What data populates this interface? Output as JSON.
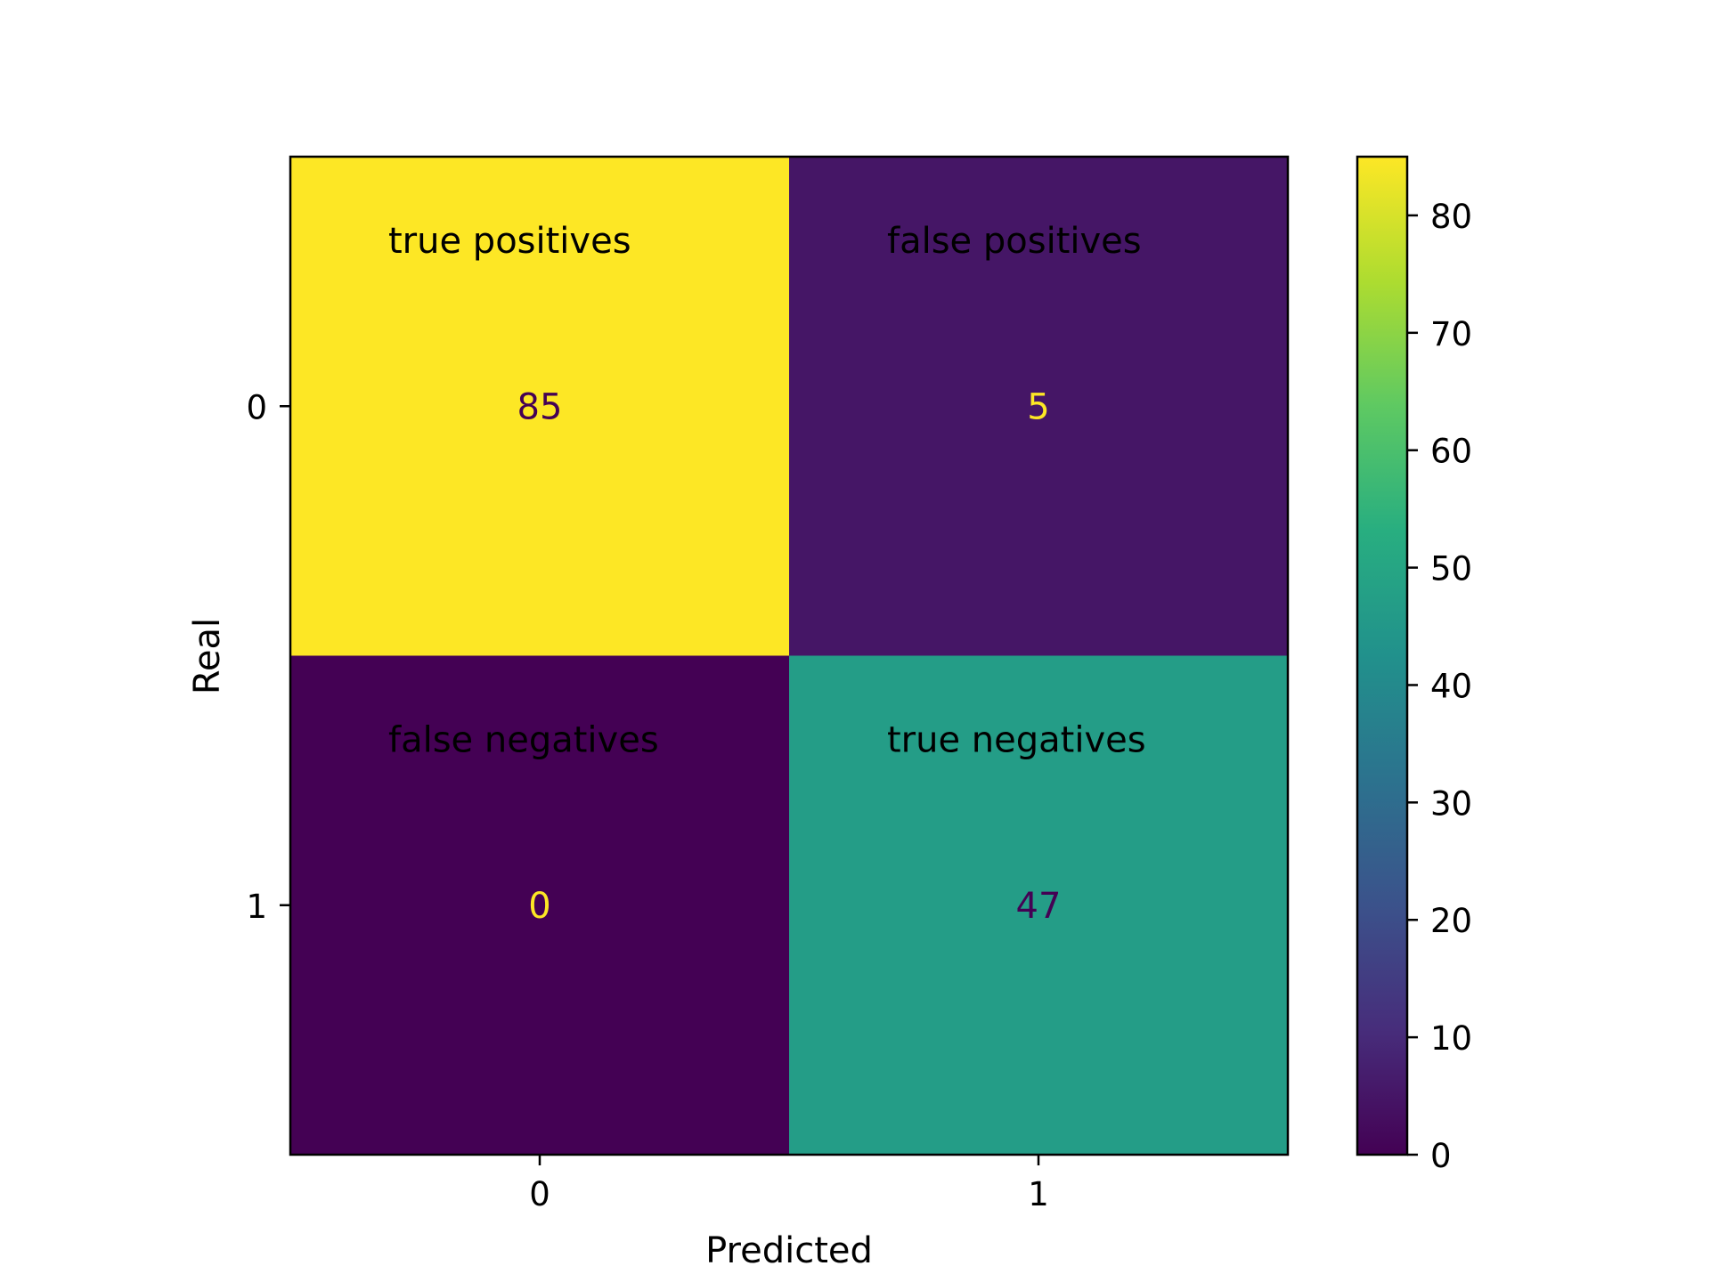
{
  "chart_data": {
    "type": "heatmap",
    "xlabel": "Predicted",
    "ylabel": "Real",
    "x_tick_labels": [
      "0",
      "1"
    ],
    "y_tick_labels": [
      "0",
      "1"
    ],
    "matrix": [
      [
        85,
        5
      ],
      [
        0,
        47
      ]
    ],
    "cell_captions": [
      [
        "true positives",
        "false positives"
      ],
      [
        "false negatives",
        "true negatives"
      ]
    ],
    "colormap": "viridis",
    "value_range": [
      0,
      85
    ],
    "colorbar_ticks": [
      "0",
      "10",
      "20",
      "30",
      "40",
      "50",
      "60",
      "70",
      "80"
    ],
    "colorbar_tick_values": [
      0,
      10,
      20,
      30,
      40,
      50,
      60,
      70,
      80
    ],
    "text_colors": {
      "on_dark": "#fde725",
      "on_light": "#440154",
      "caption": "#000000"
    }
  }
}
